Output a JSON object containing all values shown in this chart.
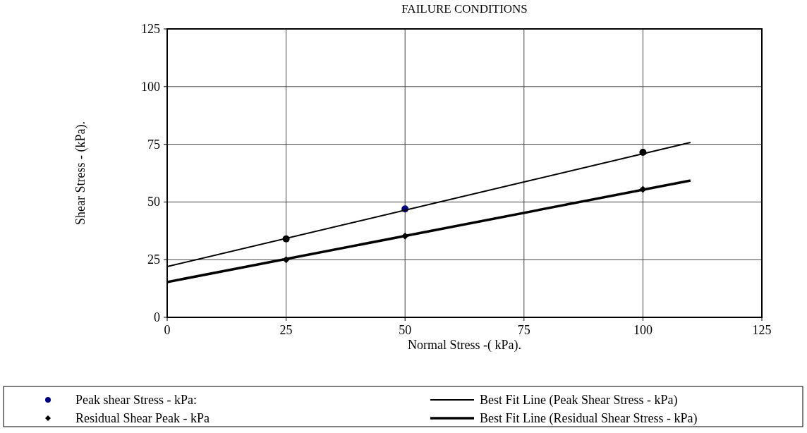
{
  "chart_data": {
    "type": "scatter",
    "title": "FAILURE CONDITIONS",
    "xlabel": "Normal Stress -( kPa).",
    "ylabel": "Shear Stress - (kPa).",
    "xlim": [
      0,
      125
    ],
    "xticks": [
      0,
      25,
      50,
      75,
      100,
      125
    ],
    "ylim": [
      0,
      125
    ],
    "yticks": [
      0,
      25,
      50,
      75,
      100,
      125
    ],
    "grid": true,
    "legend": "bottom",
    "series": [
      {
        "name": "Peak shear Stress - kPa:",
        "marker": "circle",
        "color": "#000080",
        "colors": [
          "#000000",
          "#000080",
          "#000000"
        ],
        "x": [
          25,
          50,
          100
        ],
        "values": [
          34,
          47,
          71.5
        ]
      },
      {
        "name": "Residual Shear Peak - kPa",
        "marker": "diamond",
        "color": "#000000",
        "x": [
          25,
          50,
          100
        ],
        "values": [
          25,
          35.2,
          55.5
        ]
      },
      {
        "name": "Best Fit Line (Peak Shear Stress - kPa)",
        "type": "line",
        "color": "#000000",
        "x": [
          0,
          110
        ],
        "values": [
          22,
          75.8
        ]
      },
      {
        "name": "Best Fit Line (Residual Shear Stress - kPa)",
        "type": "line",
        "color": "#000000",
        "x": [
          0,
          110
        ],
        "values": [
          15.3,
          59.3
        ]
      }
    ]
  }
}
